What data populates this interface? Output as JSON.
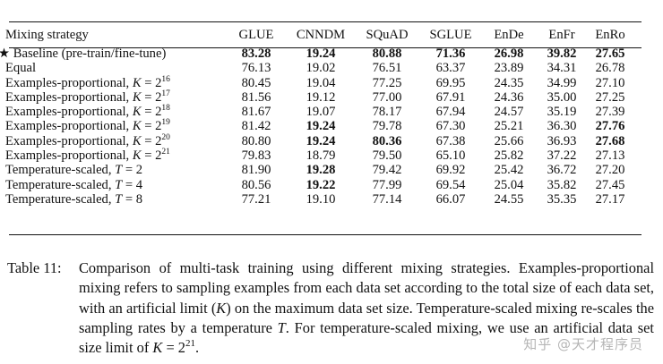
{
  "table": {
    "headers": [
      "Mixing strategy",
      "GLUE",
      "CNNDM",
      "SQuAD",
      "SGLUE",
      "EnDe",
      "EnFr",
      "EnRo"
    ],
    "rows": [
      {
        "star": "★",
        "name": "Baseline (pre-train/fine-tune)",
        "math": "",
        "exp": "",
        "values": [
          "83.28",
          "19.24",
          "80.88",
          "71.36",
          "26.98",
          "39.82",
          "27.65"
        ],
        "bold": [
          true,
          true,
          true,
          true,
          true,
          true,
          true
        ]
      },
      {
        "star": "",
        "name": "Equal",
        "math": "",
        "exp": "",
        "values": [
          "76.13",
          "19.02",
          "76.51",
          "63.37",
          "23.89",
          "34.31",
          "26.78"
        ],
        "bold": [
          false,
          false,
          false,
          false,
          false,
          false,
          false
        ]
      },
      {
        "star": "",
        "name": "Examples-proportional, ",
        "math": "K = 2",
        "exp": "16",
        "values": [
          "80.45",
          "19.04",
          "77.25",
          "69.95",
          "24.35",
          "34.99",
          "27.10"
        ],
        "bold": [
          false,
          false,
          false,
          false,
          false,
          false,
          false
        ]
      },
      {
        "star": "",
        "name": "Examples-proportional, ",
        "math": "K = 2",
        "exp": "17",
        "values": [
          "81.56",
          "19.12",
          "77.00",
          "67.91",
          "24.36",
          "35.00",
          "27.25"
        ],
        "bold": [
          false,
          false,
          false,
          false,
          false,
          false,
          false
        ]
      },
      {
        "star": "",
        "name": "Examples-proportional, ",
        "math": "K = 2",
        "exp": "18",
        "values": [
          "81.67",
          "19.07",
          "78.17",
          "67.94",
          "24.57",
          "35.19",
          "27.39"
        ],
        "bold": [
          false,
          false,
          false,
          false,
          false,
          false,
          false
        ]
      },
      {
        "star": "",
        "name": "Examples-proportional, ",
        "math": "K = 2",
        "exp": "19",
        "values": [
          "81.42",
          "19.24",
          "79.78",
          "67.30",
          "25.21",
          "36.30",
          "27.76"
        ],
        "bold": [
          false,
          true,
          false,
          false,
          false,
          false,
          true
        ]
      },
      {
        "star": "",
        "name": "Examples-proportional, ",
        "math": "K = 2",
        "exp": "20",
        "values": [
          "80.80",
          "19.24",
          "80.36",
          "67.38",
          "25.66",
          "36.93",
          "27.68"
        ],
        "bold": [
          false,
          true,
          true,
          false,
          false,
          false,
          true
        ]
      },
      {
        "star": "",
        "name": "Examples-proportional, ",
        "math": "K = 2",
        "exp": "21",
        "values": [
          "79.83",
          "18.79",
          "79.50",
          "65.10",
          "25.82",
          "37.22",
          "27.13"
        ],
        "bold": [
          false,
          false,
          false,
          false,
          false,
          false,
          false
        ]
      },
      {
        "star": "",
        "name": "Temperature-scaled, ",
        "math": "T = 2",
        "exp": "",
        "values": [
          "81.90",
          "19.28",
          "79.42",
          "69.92",
          "25.42",
          "36.72",
          "27.20"
        ],
        "bold": [
          false,
          true,
          false,
          false,
          false,
          false,
          false
        ]
      },
      {
        "star": "",
        "name": "Temperature-scaled, ",
        "math": "T = 4",
        "exp": "",
        "values": [
          "80.56",
          "19.22",
          "77.99",
          "69.54",
          "25.04",
          "35.82",
          "27.45"
        ],
        "bold": [
          false,
          true,
          false,
          false,
          false,
          false,
          false
        ]
      },
      {
        "star": "",
        "name": "Temperature-scaled, ",
        "math": "T = 8",
        "exp": "",
        "values": [
          "77.21",
          "19.10",
          "77.14",
          "66.07",
          "24.55",
          "35.35",
          "27.17"
        ],
        "bold": [
          false,
          false,
          false,
          false,
          false,
          false,
          false
        ]
      }
    ]
  },
  "caption": {
    "label": "Table 11:",
    "text": "Comparison of multi-task training using different mixing strategies. Examples-proportional mixing refers to sampling examples from each data set according to the total size of each data set, with an artificial limit (K) on the maximum data set size. Temperature-scaled mixing re-scales the sampling rates by a temperature T. For temperature-scaled mixing, we use an artificial data set size limit of K = 2^21."
  },
  "watermark": "知乎 @天才程序员"
}
